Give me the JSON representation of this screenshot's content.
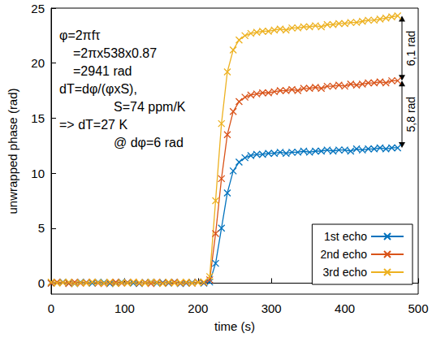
{
  "chart_data": {
    "type": "line",
    "x_label": "time (s)",
    "y_label": "unwrapped phase (rad)",
    "x": [
      0,
      8,
      16,
      24,
      32,
      40,
      48,
      56,
      64,
      72,
      80,
      88,
      96,
      104,
      112,
      120,
      128,
      136,
      144,
      152,
      160,
      168,
      176,
      184,
      192,
      200,
      208,
      216,
      224,
      232,
      240,
      248,
      256,
      264,
      272,
      280,
      288,
      296,
      304,
      312,
      320,
      328,
      336,
      344,
      352,
      360,
      368,
      376,
      384,
      392,
      400,
      408,
      416,
      424,
      432,
      440,
      448,
      456,
      464,
      472
    ],
    "series": [
      {
        "name": "1st echo",
        "color": "#0072bd",
        "marker": "x",
        "values": [
          0,
          0.05,
          0.1,
          0,
          -0.05,
          0.1,
          0.05,
          0,
          0.1,
          0.05,
          -0.05,
          0,
          0.1,
          0.05,
          0,
          -0.05,
          0.05,
          0.1,
          0,
          0.05,
          0,
          0.1,
          -0.05,
          0,
          0.05,
          0.1,
          0,
          0.1,
          1.8,
          5.0,
          8.2,
          10.2,
          11.0,
          11.4,
          11.6,
          11.7,
          11.7,
          11.8,
          11.8,
          11.9,
          11.8,
          11.9,
          11.9,
          12.0,
          11.9,
          12.0,
          12.0,
          12.1,
          12.0,
          12.1,
          12.1,
          12.0,
          12.2,
          12.1,
          12.2,
          12.2,
          12.3,
          12.2,
          12.3,
          12.3
        ]
      },
      {
        "name": "2nd echo",
        "color": "#d95319",
        "marker": "x",
        "values": [
          0,
          0.1,
          0.05,
          -0.05,
          0.1,
          0,
          0.05,
          0.1,
          0,
          -0.05,
          0.05,
          0.1,
          0,
          0.05,
          0.1,
          0,
          0.05,
          -0.05,
          0.1,
          0,
          0.05,
          0.1,
          0,
          0.05,
          0,
          0.1,
          0.05,
          0.3,
          4.5,
          9.5,
          13.5,
          15.6,
          16.5,
          16.9,
          17.1,
          17.2,
          17.3,
          17.3,
          17.4,
          17.5,
          17.5,
          17.6,
          17.5,
          17.7,
          17.7,
          17.8,
          17.7,
          17.9,
          17.9,
          18.0,
          17.9,
          18.1,
          18.0,
          18.1,
          18.2,
          18.2,
          18.3,
          18.2,
          18.4,
          18.4
        ]
      },
      {
        "name": "3rd echo",
        "color": "#edb120",
        "marker": "x",
        "values": [
          0.1,
          0,
          0.05,
          0.1,
          -0.05,
          0.05,
          0,
          0.1,
          0.05,
          0,
          0.1,
          -0.05,
          0.05,
          0,
          0.1,
          0.05,
          0,
          0.1,
          0.05,
          -0.05,
          0.1,
          0,
          0.05,
          0.1,
          0,
          0.05,
          0.1,
          0.6,
          7.5,
          14.5,
          19.2,
          21.2,
          22.1,
          22.5,
          22.7,
          22.8,
          22.9,
          22.9,
          23.0,
          23.1,
          23.0,
          23.2,
          23.2,
          23.3,
          23.3,
          23.4,
          23.3,
          23.5,
          23.5,
          23.6,
          23.6,
          23.7,
          23.7,
          23.8,
          23.9,
          23.9,
          24.0,
          24.1,
          24.2,
          24.3
        ]
      }
    ],
    "xlim": [
      0,
      500
    ],
    "xticks": [
      0,
      100,
      200,
      300,
      400,
      500
    ],
    "ylim": [
      -1,
      25
    ],
    "yticks": [
      0,
      5,
      10,
      15,
      20,
      25
    ],
    "grid": false,
    "legend": "lower right",
    "annotations": [
      "φ=2πfτ",
      "=2πx538x0.87",
      "=2941 rad",
      "dT=dφ/(φxS),",
      "S=74 ppm/K",
      "=> dT=27 K",
      "@ dφ=6 rad"
    ],
    "bracket_labels": [
      "5,8 rad",
      "6,1 rad"
    ]
  }
}
